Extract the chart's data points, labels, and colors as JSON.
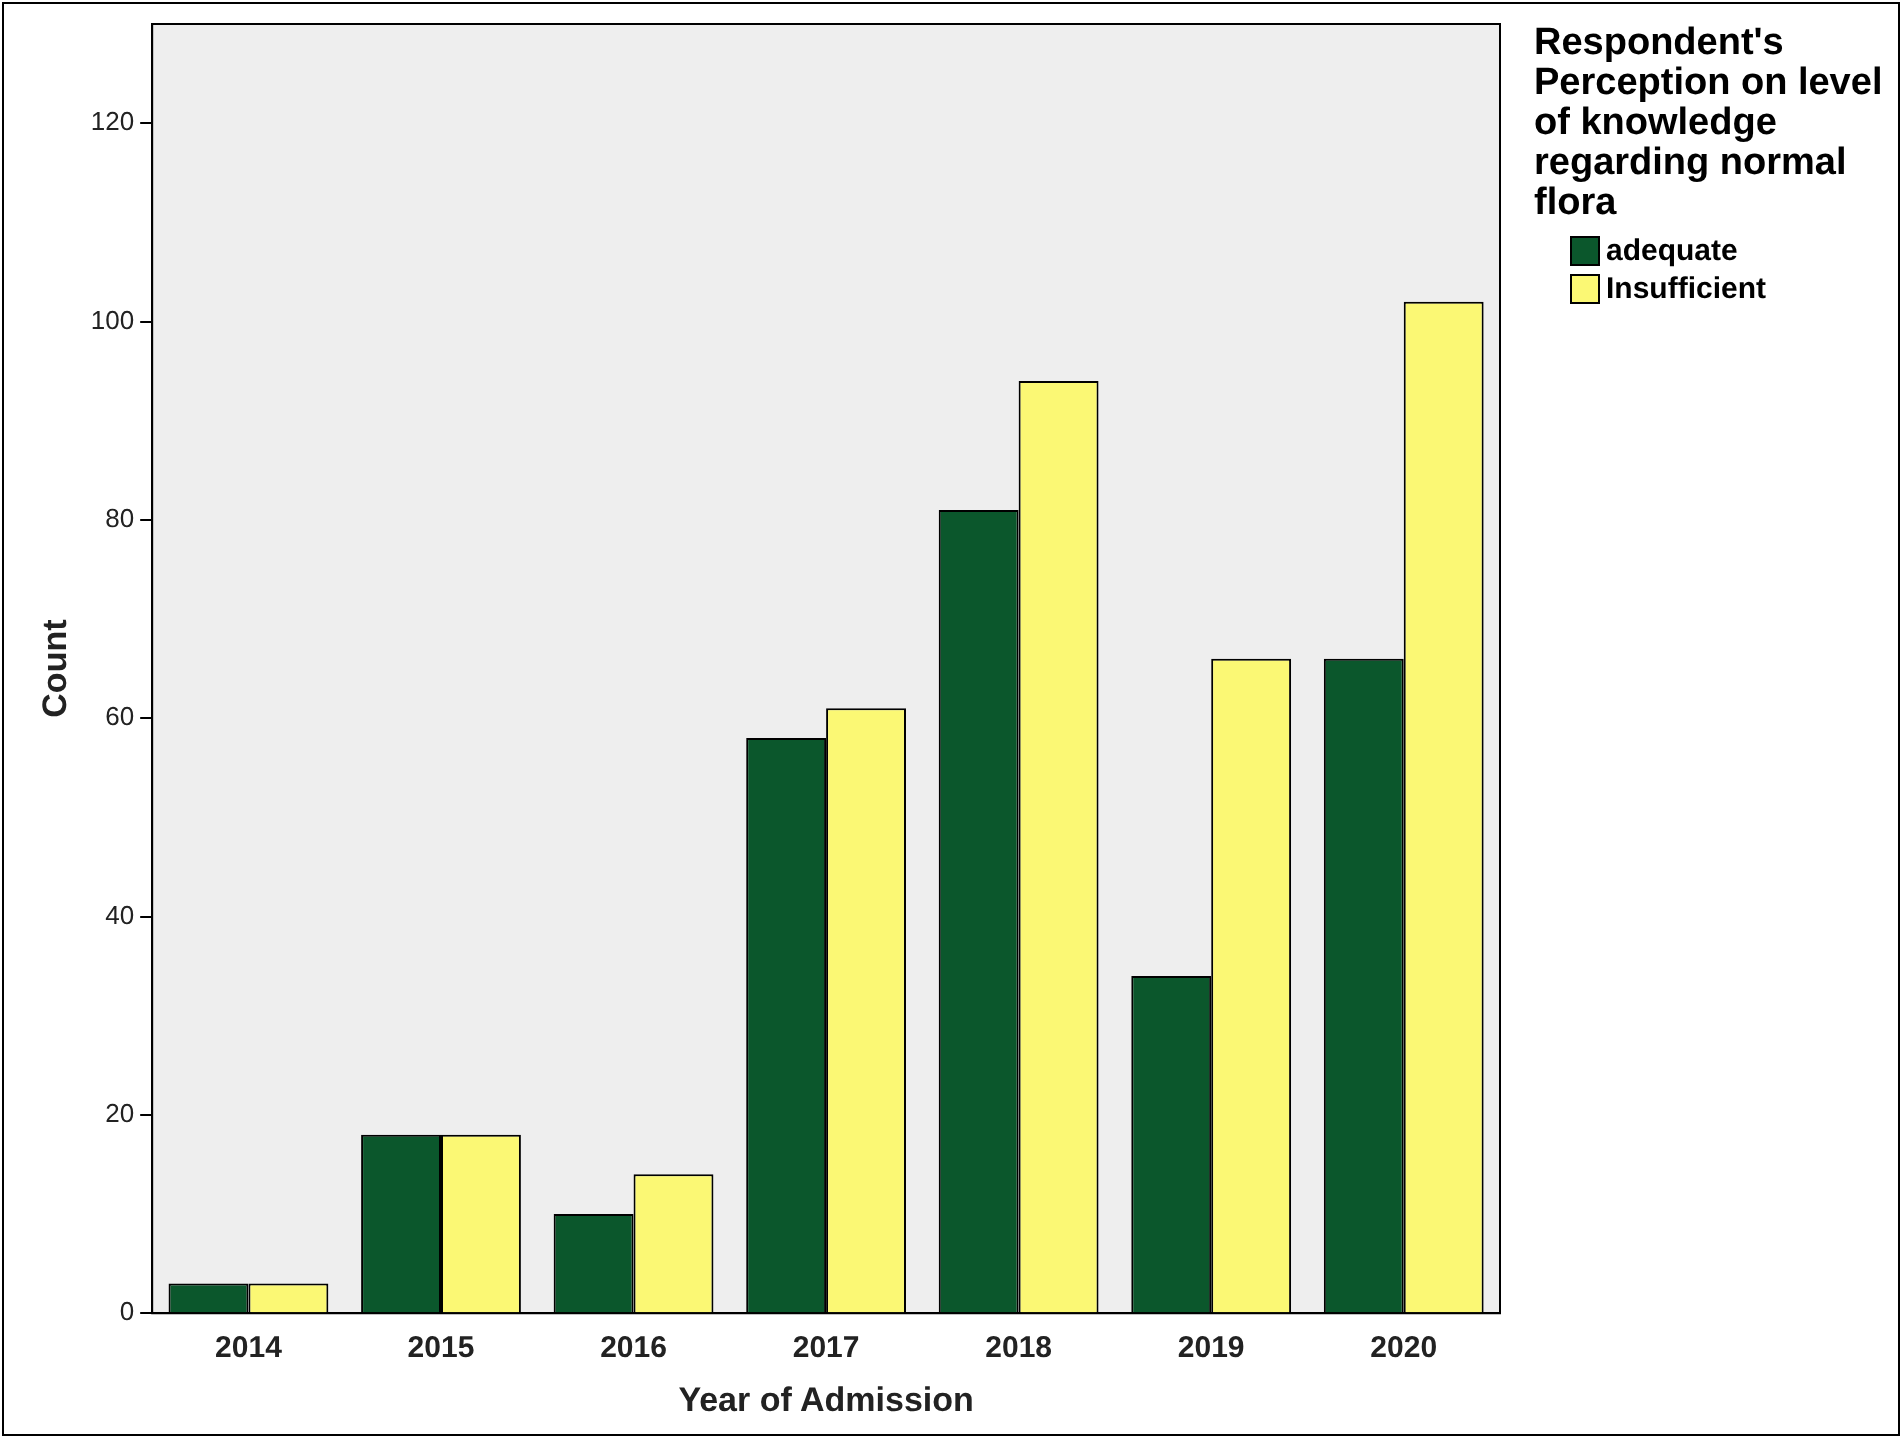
{
  "chart_data": {
    "type": "bar",
    "xlabel": "Year of Admission",
    "ylabel": "Count",
    "legend_title": "Respondent's Perception on level of knowledge regarding normal flora",
    "categories": [
      "2014",
      "2015",
      "2016",
      "2017",
      "2018",
      "2019",
      "2020"
    ],
    "series": [
      {
        "name": "adequate",
        "color": "#0b572c",
        "values": [
          3,
          18,
          10,
          58,
          81,
          34,
          66
        ]
      },
      {
        "name": "Insufficient",
        "color": "#fbf874",
        "values": [
          3,
          18,
          14,
          61,
          94,
          66,
          102
        ]
      }
    ],
    "ylim": [
      0,
      130
    ],
    "yticks": [
      0,
      20,
      40,
      60,
      80,
      100,
      120
    ],
    "grid": false,
    "legend": "top right"
  }
}
